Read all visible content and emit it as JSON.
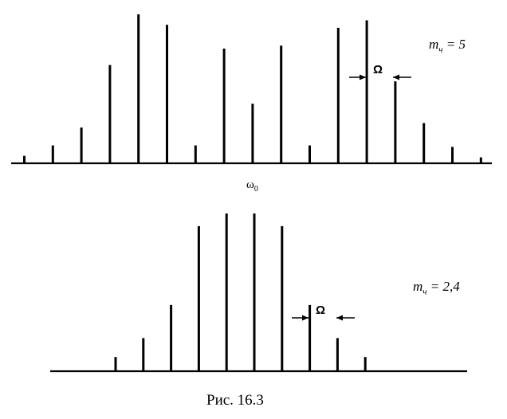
{
  "top": {
    "label_var": "m",
    "label_sub": "ч",
    "label_value": "= 5",
    "omega_label": "Ω",
    "carrier_label": "ω",
    "carrier_sub": "0",
    "relative_amplitudes": [
      0.05,
      0.12,
      0.24,
      0.66,
      1.0,
      0.93,
      0.12,
      0.77,
      0.4,
      0.79,
      0.12,
      0.91,
      0.96,
      0.55,
      0.27,
      0.11,
      0.04
    ]
  },
  "bottom": {
    "label_var": "m",
    "label_sub": "ч",
    "label_value": "= 2,4",
    "omega_label": "Ω",
    "relative_amplitudes": [
      0.09,
      0.21,
      0.42,
      0.92,
      1.0,
      1.0,
      0.92,
      0.42,
      0.21,
      0.09
    ]
  },
  "caption": "Рис. 16.3"
}
